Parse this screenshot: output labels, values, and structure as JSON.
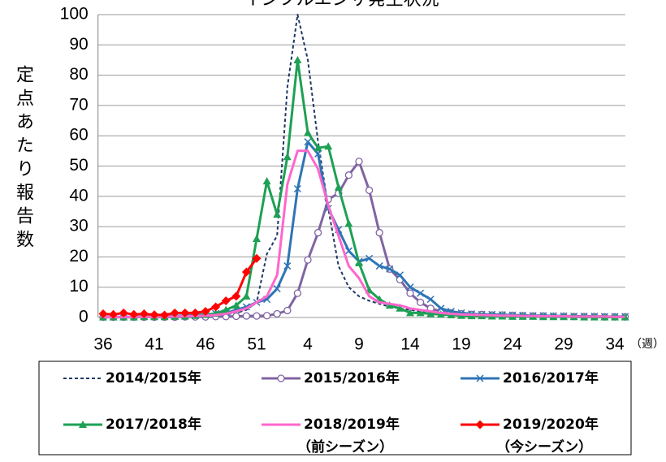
{
  "chart_data": {
    "type": "line",
    "title": "インフルエンザ発生状況",
    "y_label": "定点あたり報告数",
    "x_unit": "（週）",
    "categories": [
      "36",
      null,
      null,
      null,
      null,
      "41",
      null,
      null,
      null,
      null,
      "46",
      null,
      null,
      null,
      null,
      "51",
      null,
      null,
      null,
      null,
      "4",
      null,
      null,
      null,
      null,
      "9",
      null,
      null,
      null,
      null,
      "14",
      null,
      null,
      null,
      null,
      "19",
      null,
      null,
      null,
      null,
      "24",
      null,
      null,
      null,
      null,
      "29",
      null,
      null,
      null,
      null,
      "34",
      null
    ],
    "ylim": [
      0,
      100
    ],
    "yticks": [
      0,
      10,
      20,
      30,
      40,
      50,
      60,
      70,
      80,
      90,
      100
    ],
    "grid": true,
    "series": [
      {
        "name": "2014/2015年",
        "color": "#1f3864",
        "dash": true,
        "marker": "none",
        "values": [
          0.1,
          0.1,
          0.1,
          0.1,
          0.1,
          0.1,
          0.2,
          0.2,
          0.3,
          0.4,
          0.5,
          0.7,
          1.0,
          1.5,
          2.5,
          5,
          21,
          27,
          76,
          100,
          85,
          58,
          36,
          17,
          10,
          7,
          5.5,
          4.5,
          3.5,
          3,
          2.5,
          2,
          1.5,
          1.2,
          1,
          0.8,
          0.7,
          0.6,
          0.5,
          0.5,
          0.4,
          0.4,
          0.3,
          0.3,
          0.3,
          0.2,
          0.2,
          0.2,
          0.2,
          0.1,
          0.1,
          0.1
        ]
      },
      {
        "name": "2015/2016年",
        "color": "#8064a2",
        "dash": false,
        "marker": "circle",
        "values": [
          0.1,
          0.1,
          0.1,
          0.1,
          0.1,
          0.1,
          0.1,
          0.1,
          0.2,
          0.2,
          0.2,
          0.3,
          0.3,
          0.4,
          0.5,
          0.5,
          0.6,
          1.2,
          2.3,
          8,
          19,
          28,
          39,
          41,
          47,
          51.5,
          42,
          28,
          16,
          12.5,
          8,
          5,
          3,
          2,
          1.5,
          1.2,
          1,
          1,
          0.8,
          0.8,
          0.7,
          0.6,
          0.5,
          0.5,
          0.4,
          0.4,
          0.3,
          0.3,
          0.3,
          0.2,
          0.2,
          0.2
        ]
      },
      {
        "name": "2016/2017年",
        "color": "#2e75b6",
        "dash": false,
        "marker": "x",
        "values": [
          0.2,
          0.2,
          0.2,
          0.2,
          0.3,
          0.3,
          0.4,
          0.5,
          0.6,
          0.8,
          1,
          1.3,
          1.5,
          2.5,
          3.5,
          5,
          6,
          9.5,
          17,
          42.5,
          58,
          54,
          36,
          29,
          22,
          18.5,
          19.5,
          17,
          16,
          14,
          10,
          8,
          6,
          3,
          2,
          1.5,
          1.2,
          1,
          1,
          0.9,
          0.8,
          0.7,
          0.6,
          0.6,
          0.5,
          0.5,
          0.4,
          0.4,
          0.4,
          0.3,
          0.3,
          0.3
        ]
      },
      {
        "name": "2017/2018年",
        "color": "#1ea055",
        "dash": false,
        "marker": "triangle",
        "values": [
          0.1,
          0.1,
          0.1,
          0.1,
          0.2,
          0.2,
          0.2,
          0.3,
          0.4,
          0.6,
          0.9,
          1.3,
          2.5,
          4,
          7,
          26,
          45,
          34,
          53,
          85,
          61,
          56,
          56.5,
          43,
          31,
          18,
          9,
          6,
          4,
          3,
          1.5,
          1.5,
          1.2,
          1,
          0.8,
          0.6,
          0.5,
          0.5,
          0.4,
          0.4,
          0.3,
          0.3,
          0.3,
          0.2,
          0.2,
          0.2,
          0.2,
          0.1,
          0.1,
          0.1,
          0.1,
          0.1
        ]
      },
      {
        "name": "2018/2019年",
        "subtitle": "（前シーズン）",
        "color": "#ff66cc",
        "dash": false,
        "marker": "none",
        "values": [
          0.1,
          0.1,
          0.1,
          0.2,
          0.2,
          0.2,
          0.3,
          0.3,
          0.4,
          0.5,
          0.6,
          0.8,
          1.2,
          2,
          3,
          5,
          7,
          14,
          44,
          55,
          55,
          49,
          37,
          27,
          17,
          13,
          7,
          5,
          4.5,
          4,
          3,
          2.5,
          2,
          1.5,
          1.2,
          1,
          0.9,
          0.8,
          0.7,
          0.6,
          0.6,
          0.5,
          0.5,
          0.4,
          0.4,
          0.4,
          0.3,
          0.3,
          0.3,
          0.3,
          0.2,
          0.2
        ]
      },
      {
        "name": "2019/2020年",
        "subtitle": "（今シーズン）",
        "color": "#ff0000",
        "dash": false,
        "marker": "diamond",
        "values": [
          1.2,
          1.0,
          1.5,
          1.0,
          1.2,
          0.9,
          0.8,
          1.5,
          1.5,
          1.5,
          2,
          3.5,
          5.5,
          7,
          15,
          19.5,
          null,
          null,
          null,
          null,
          null,
          null,
          null,
          null,
          null,
          null,
          null,
          null,
          null,
          null,
          null,
          null,
          null,
          null,
          null,
          null,
          null,
          null,
          null,
          null,
          null,
          null,
          null,
          null,
          null,
          null,
          null,
          null,
          null,
          null,
          null,
          null
        ]
      }
    ]
  }
}
